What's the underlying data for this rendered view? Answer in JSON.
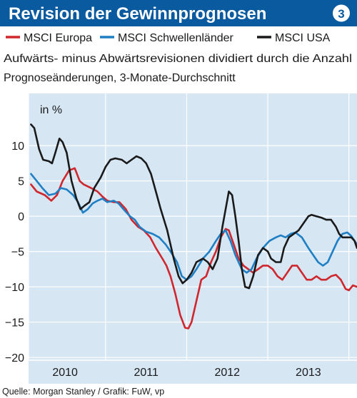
{
  "header": {
    "title": "Revision der Gewinnprognosen",
    "badge": "3"
  },
  "subtitle": {
    "line1": "Aufwärts- minus Abwärtsrevisionen dividiert durch die Anzahl",
    "line2": "Prognoseänderungen, 3-Monate-Durchschnitt"
  },
  "source": "Quelle: Morgan Stanley / Grafik: FuW, vp",
  "colors": {
    "header_bg": "#0a5aa0",
    "badge_bg": "#ffffff",
    "badge_text": "#0a5aa0",
    "plot_bg": "#d6e6f3",
    "grid": "#ffffff",
    "europa": "#d0262e",
    "schwellen": "#1f7fc4",
    "usa": "#1a1a1a"
  },
  "chart_data": {
    "type": "line",
    "ylabel": "in %",
    "ylim": [
      -20,
      15
    ],
    "yticks": [
      10,
      5,
      0,
      -5,
      -10,
      -15,
      -20
    ],
    "xlim": [
      2009.55,
      2013.6
    ],
    "year_ticks": [
      "2010",
      "2011",
      "2012",
      "2013"
    ],
    "x_dividers": [
      2009.55,
      2010.5,
      2011.5,
      2012.5,
      2013.5
    ],
    "x_labels": [
      {
        "label": "2010",
        "x": 2010.0
      },
      {
        "label": "2011",
        "x": 2011.0
      },
      {
        "label": "2012",
        "x": 2012.0
      },
      {
        "label": "2013",
        "x": 2013.0
      }
    ],
    "legend_placement": "top",
    "series": [
      {
        "name": "MSCI Europa",
        "color_key": "europa",
        "points": [
          [
            2009.58,
            4.5
          ],
          [
            2009.65,
            3.5
          ],
          [
            2009.75,
            3.0
          ],
          [
            2009.83,
            2.2
          ],
          [
            2009.9,
            3.0
          ],
          [
            2009.97,
            5.0
          ],
          [
            2010.05,
            6.5
          ],
          [
            2010.12,
            6.8
          ],
          [
            2010.18,
            5.0
          ],
          [
            2010.23,
            4.5
          ],
          [
            2010.32,
            4.0
          ],
          [
            2010.4,
            3.5
          ],
          [
            2010.46,
            2.8
          ],
          [
            2010.52,
            2.2
          ],
          [
            2010.6,
            2.0
          ],
          [
            2010.67,
            2.0
          ],
          [
            2010.75,
            1.0
          ],
          [
            2010.82,
            -0.5
          ],
          [
            2010.9,
            -1.5
          ],
          [
            2010.97,
            -2.0
          ],
          [
            2011.05,
            -3.0
          ],
          [
            2011.12,
            -4.5
          ],
          [
            2011.2,
            -6.0
          ],
          [
            2011.25,
            -7.0
          ],
          [
            2011.3,
            -8.5
          ],
          [
            2011.36,
            -11.0
          ],
          [
            2011.42,
            -14.0
          ],
          [
            2011.48,
            -15.8
          ],
          [
            2011.52,
            -15.9
          ],
          [
            2011.56,
            -15.0
          ],
          [
            2011.62,
            -12.0
          ],
          [
            2011.68,
            -9.0
          ],
          [
            2011.74,
            -8.5
          ],
          [
            2011.8,
            -6.5
          ],
          [
            2011.86,
            -5.0
          ],
          [
            2011.92,
            -3.0
          ],
          [
            2011.98,
            -1.8
          ],
          [
            2012.02,
            -2.0
          ],
          [
            2012.08,
            -4.0
          ],
          [
            2012.14,
            -6.0
          ],
          [
            2012.2,
            -7.0
          ],
          [
            2012.26,
            -7.5
          ],
          [
            2012.32,
            -8.0
          ],
          [
            2012.38,
            -7.5
          ],
          [
            2012.44,
            -7.0
          ],
          [
            2012.5,
            -7.0
          ],
          [
            2012.56,
            -7.5
          ],
          [
            2012.62,
            -8.5
          ],
          [
            2012.68,
            -9.0
          ],
          [
            2012.74,
            -8.0
          ],
          [
            2012.8,
            -7.0
          ],
          [
            2012.86,
            -7.0
          ],
          [
            2012.92,
            -8.0
          ],
          [
            2012.98,
            -9.0
          ],
          [
            2013.04,
            -9.0
          ],
          [
            2013.1,
            -8.5
          ],
          [
            2013.16,
            -9.0
          ],
          [
            2013.22,
            -9.0
          ],
          [
            2013.28,
            -8.5
          ],
          [
            2013.34,
            -8.3
          ],
          [
            2013.4,
            -9.0
          ],
          [
            2013.46,
            -10.3
          ],
          [
            2013.5,
            -10.5
          ],
          [
            2013.55,
            -9.8
          ],
          [
            2013.6,
            -10.0
          ]
        ]
      },
      {
        "name": "MSCI Schwellenländer",
        "color_key": "schwellen",
        "points": [
          [
            2009.58,
            6.0
          ],
          [
            2009.65,
            5.0
          ],
          [
            2009.72,
            4.0
          ],
          [
            2009.8,
            3.0
          ],
          [
            2009.88,
            3.2
          ],
          [
            2009.95,
            4.0
          ],
          [
            2010.02,
            3.8
          ],
          [
            2010.1,
            3.0
          ],
          [
            2010.16,
            2.0
          ],
          [
            2010.22,
            0.5
          ],
          [
            2010.28,
            1.0
          ],
          [
            2010.34,
            1.8
          ],
          [
            2010.4,
            2.2
          ],
          [
            2010.46,
            2.5
          ],
          [
            2010.52,
            2.0
          ],
          [
            2010.6,
            2.2
          ],
          [
            2010.66,
            1.8
          ],
          [
            2010.72,
            1.0
          ],
          [
            2010.8,
            0.0
          ],
          [
            2010.86,
            -0.5
          ],
          [
            2010.92,
            -1.5
          ],
          [
            2011.0,
            -2.2
          ],
          [
            2011.08,
            -2.5
          ],
          [
            2011.16,
            -3.0
          ],
          [
            2011.24,
            -4.0
          ],
          [
            2011.3,
            -5.0
          ],
          [
            2011.38,
            -6.5
          ],
          [
            2011.44,
            -8.5
          ],
          [
            2011.5,
            -9.0
          ],
          [
            2011.56,
            -8.5
          ],
          [
            2011.62,
            -7.5
          ],
          [
            2011.7,
            -6.0
          ],
          [
            2011.78,
            -5.0
          ],
          [
            2011.86,
            -3.5
          ],
          [
            2011.92,
            -2.5
          ],
          [
            2011.98,
            -2.0
          ],
          [
            2012.04,
            -3.5
          ],
          [
            2012.1,
            -5.5
          ],
          [
            2012.18,
            -7.5
          ],
          [
            2012.24,
            -8.0
          ],
          [
            2012.3,
            -7.5
          ],
          [
            2012.36,
            -6.0
          ],
          [
            2012.44,
            -4.5
          ],
          [
            2012.52,
            -3.5
          ],
          [
            2012.6,
            -3.0
          ],
          [
            2012.66,
            -2.7
          ],
          [
            2012.72,
            -3.0
          ],
          [
            2012.78,
            -2.5
          ],
          [
            2012.84,
            -2.3
          ],
          [
            2012.92,
            -3.0
          ],
          [
            2013.0,
            -4.5
          ],
          [
            2013.06,
            -5.5
          ],
          [
            2013.12,
            -6.5
          ],
          [
            2013.18,
            -7.0
          ],
          [
            2013.24,
            -6.5
          ],
          [
            2013.3,
            -5.0
          ],
          [
            2013.36,
            -3.5
          ],
          [
            2013.42,
            -2.5
          ],
          [
            2013.48,
            -2.3
          ],
          [
            2013.53,
            -2.8
          ],
          [
            2013.57,
            -3.5
          ],
          [
            2013.6,
            -4.0
          ]
        ]
      },
      {
        "name": "MSCI USA",
        "color_key": "usa",
        "points": [
          [
            2009.58,
            13.0
          ],
          [
            2009.62,
            12.5
          ],
          [
            2009.68,
            9.5
          ],
          [
            2009.73,
            8.0
          ],
          [
            2009.8,
            7.8
          ],
          [
            2009.84,
            7.5
          ],
          [
            2009.88,
            9.0
          ],
          [
            2009.93,
            11.0
          ],
          [
            2009.97,
            10.5
          ],
          [
            2010.02,
            9.0
          ],
          [
            2010.08,
            5.0
          ],
          [
            2010.14,
            2.5
          ],
          [
            2010.19,
            1.0
          ],
          [
            2010.24,
            1.5
          ],
          [
            2010.3,
            2.0
          ],
          [
            2010.36,
            4.0
          ],
          [
            2010.44,
            5.5
          ],
          [
            2010.5,
            7.0
          ],
          [
            2010.56,
            8.0
          ],
          [
            2010.62,
            8.2
          ],
          [
            2010.7,
            8.0
          ],
          [
            2010.76,
            7.5
          ],
          [
            2010.82,
            8.0
          ],
          [
            2010.88,
            8.5
          ],
          [
            2010.94,
            8.2
          ],
          [
            2011.0,
            7.5
          ],
          [
            2011.06,
            6.0
          ],
          [
            2011.12,
            3.5
          ],
          [
            2011.18,
            1.0
          ],
          [
            2011.26,
            -2.0
          ],
          [
            2011.34,
            -6.0
          ],
          [
            2011.4,
            -8.5
          ],
          [
            2011.45,
            -9.5
          ],
          [
            2011.5,
            -9.0
          ],
          [
            2011.56,
            -8.0
          ],
          [
            2011.62,
            -6.5
          ],
          [
            2011.7,
            -6.0
          ],
          [
            2011.76,
            -6.5
          ],
          [
            2011.82,
            -7.5
          ],
          [
            2011.88,
            -6.0
          ],
          [
            2011.94,
            -1.5
          ],
          [
            2011.98,
            1.0
          ],
          [
            2012.02,
            3.5
          ],
          [
            2012.06,
            3.0
          ],
          [
            2012.1,
            0.0
          ],
          [
            2012.14,
            -3.5
          ],
          [
            2012.18,
            -7.5
          ],
          [
            2012.22,
            -10.0
          ],
          [
            2012.27,
            -10.2
          ],
          [
            2012.32,
            -8.5
          ],
          [
            2012.38,
            -5.5
          ],
          [
            2012.44,
            -4.5
          ],
          [
            2012.5,
            -5.0
          ],
          [
            2012.54,
            -6.0
          ],
          [
            2012.6,
            -6.5
          ],
          [
            2012.66,
            -6.5
          ],
          [
            2012.7,
            -4.5
          ],
          [
            2012.76,
            -3.0
          ],
          [
            2012.82,
            -2.5
          ],
          [
            2012.88,
            -2.0
          ],
          [
            2012.94,
            -1.0
          ],
          [
            2013.0,
            0.0
          ],
          [
            2013.04,
            0.2
          ],
          [
            2013.1,
            0.0
          ],
          [
            2013.16,
            -0.2
          ],
          [
            2013.22,
            -0.5
          ],
          [
            2013.28,
            -0.5
          ],
          [
            2013.34,
            -1.5
          ],
          [
            2013.38,
            -2.5
          ],
          [
            2013.42,
            -3.0
          ],
          [
            2013.48,
            -3.0
          ],
          [
            2013.53,
            -3.0
          ],
          [
            2013.57,
            -3.5
          ],
          [
            2013.6,
            -4.5
          ]
        ]
      }
    ]
  }
}
